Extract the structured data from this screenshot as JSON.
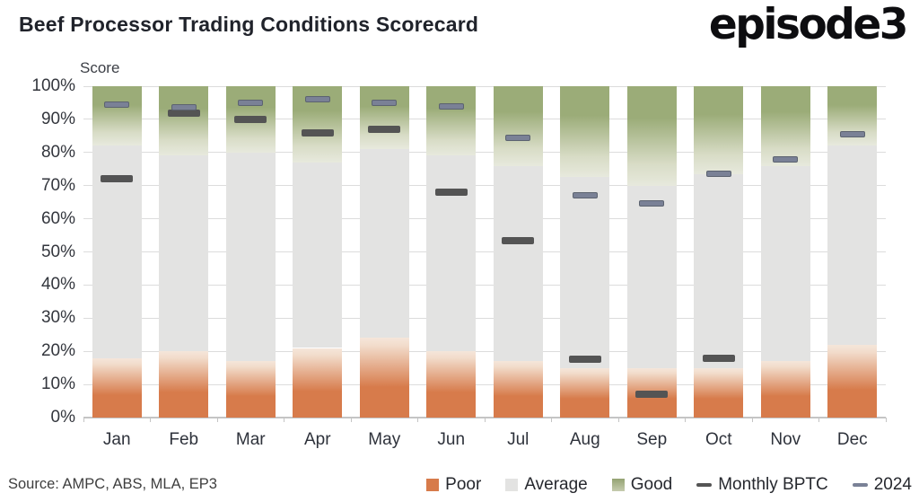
{
  "header": {
    "title": "Beef Processor Trading Conditions Scorecard",
    "logo": "episode3"
  },
  "source": "Source: AMPC, ABS, MLA, EP3",
  "legend": [
    {
      "label": "Poor",
      "swatch": "square",
      "color": "#D77B4B"
    },
    {
      "label": "Average",
      "swatch": "square",
      "color": "#E3E3E2"
    },
    {
      "label": "Good",
      "swatch": "square",
      "color": "#9BAC78"
    },
    {
      "label": "Monthly BPTC",
      "swatch": "dash",
      "color": "#545454"
    },
    {
      "label": "2024",
      "swatch": "dash",
      "color": "#7A8196"
    }
  ],
  "colors": {
    "poor": "#D77B4B",
    "average": "#E3E3E2",
    "good": "#9BAC78",
    "monthly_bptc_marker": "#545454",
    "marker_2024": "#7A8196",
    "gridline": "#DCDCDC",
    "title_text": "#20232B"
  },
  "chart_data": {
    "type": "bar",
    "stacked": true,
    "title": "Beef Processor Trading Conditions Scorecard",
    "ylabel": "Score",
    "xlabel": "",
    "ylim": [
      0,
      100
    ],
    "yticks": [
      "0%",
      "10%",
      "20%",
      "30%",
      "40%",
      "50%",
      "60%",
      "70%",
      "80%",
      "90%",
      "100%"
    ],
    "grid": true,
    "legend_position": "bottom",
    "categories": [
      "Jan",
      "Feb",
      "Mar",
      "Apr",
      "May",
      "Jun",
      "Jul",
      "Aug",
      "Sep",
      "Oct",
      "Nov",
      "Dec"
    ],
    "series": [
      {
        "name": "Poor",
        "render": "bar-segment",
        "values": [
          18,
          20,
          17,
          21,
          24,
          20,
          17,
          15,
          15,
          15,
          17,
          22
        ]
      },
      {
        "name": "Average",
        "render": "bar-segment",
        "values": [
          64,
          59,
          63,
          56,
          57,
          59,
          59,
          57.5,
          55,
          58.5,
          59,
          60
        ]
      },
      {
        "name": "Good",
        "render": "bar-segment",
        "values": [
          18,
          21,
          20,
          23,
          19,
          21,
          24,
          27.5,
          30,
          26.5,
          24,
          18
        ]
      },
      {
        "name": "Monthly BPTC",
        "render": "dash-marker",
        "values": [
          72,
          92,
          90,
          86,
          87,
          68,
          53.5,
          17.5,
          7,
          18,
          null,
          null
        ]
      },
      {
        "name": "2024",
        "render": "dash-marker",
        "values": [
          94.5,
          93.5,
          95,
          96,
          95,
          94,
          84.5,
          67,
          64.5,
          73.5,
          78,
          85.5
        ]
      }
    ]
  }
}
